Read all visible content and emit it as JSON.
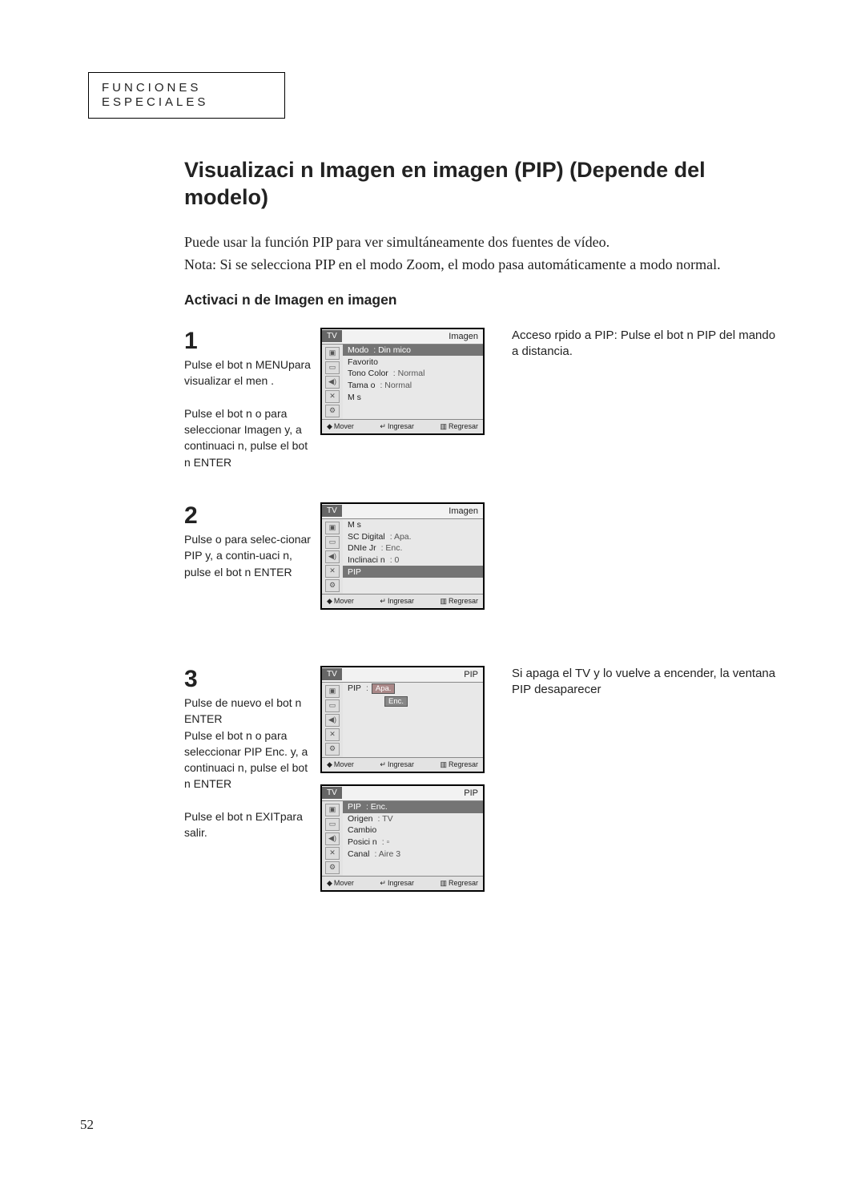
{
  "section_label": "FUNCIONES ESPECIALES",
  "page_number": "52",
  "main_title": "Visualizaci n Imagen en imagen (PIP) (Depende del modelo)",
  "intro": "Puede usar la función PIP para ver simultáneamente dos fuentes de vídeo.",
  "note": "Nota: Si se selecciona PIP en el modo Zoom, el modo pasa automáticamente a modo normal.",
  "subheading": "Activaci n de Imagen en imagen",
  "side_note_1": "Acceso rpido a PIP: Pulse el bot n PIP del mando a distancia.",
  "side_note_3": "Si apaga el TV y lo vuelve a encender, la ventana PIP desaparecer",
  "steps": {
    "1": {
      "num": "1",
      "text": "Pulse el bot n MENUpara visualizar el men .\n\nPulse el bot n    o  para\nseleccionar  Imagen  y, a continuaci n, pulse el bot n ENTER"
    },
    "2": {
      "num": "2",
      "text": "Pulse    o    para selec-cionar  PIP  y, a contin-uaci n, pulse el bot n ENTER"
    },
    "3": {
      "num": "3",
      "text": "Pulse de nuevo el bot n ENTER\nPulse el bot n    o  para\nseleccionar PIP  Enc.  y, a continuaci n, pulse el bot n ENTER\n\nPulse el bot n EXITpara salir."
    }
  },
  "screens": {
    "s1": {
      "tab": "TV",
      "title": "Imagen",
      "rows": [
        {
          "label": "Modo",
          "value": ": Din mico",
          "selected": true
        },
        {
          "label": "Favorito",
          "value": ""
        },
        {
          "label": "Tono Color",
          "value": ": Normal"
        },
        {
          "label": "Tama o",
          "value": ": Normal"
        },
        {
          "label": "M s",
          "value": ""
        }
      ],
      "footer": {
        "a": "Mover",
        "b": "Ingresar",
        "c": "Regresar"
      }
    },
    "s2": {
      "tab": "TV",
      "title": "Imagen",
      "rows": [
        {
          "label": "M s",
          "value": ""
        },
        {
          "label": "SC Digital",
          "value": ": Apa."
        },
        {
          "label": "DNIe Jr",
          "value": ": Enc."
        },
        {
          "label": "Inclinaci n",
          "value": ": 0"
        },
        {
          "label": "PIP",
          "value": "",
          "selected": true
        }
      ],
      "footer": {
        "a": "Mover",
        "b": "Ingresar",
        "c": "Regresar"
      }
    },
    "s3a": {
      "tab": "TV",
      "title": "PIP",
      "rows": [
        {
          "label": "PIP",
          "value": ":",
          "dropdown": [
            "Apa.",
            "Enc."
          ],
          "dropdown_selected": 0
        }
      ],
      "empty_rows": 4,
      "footer": {
        "a": "Mover",
        "b": "Ingresar",
        "c": "Regresar"
      }
    },
    "s3b": {
      "tab": "TV",
      "title": "PIP",
      "rows": [
        {
          "label": "PIP",
          "value": ": Enc.",
          "selected": true
        },
        {
          "label": "Origen",
          "value": ": TV"
        },
        {
          "label": "Cambio",
          "value": ""
        },
        {
          "label": "Posici n",
          "value": ": ▫"
        },
        {
          "label": "Canal",
          "value": ": Aire  3"
        }
      ],
      "footer": {
        "a": "Mover",
        "b": "Ingresar",
        "c": "Regresar"
      }
    }
  },
  "icons": [
    "▣",
    "▭",
    "◀)",
    "✕",
    "⚙"
  ]
}
